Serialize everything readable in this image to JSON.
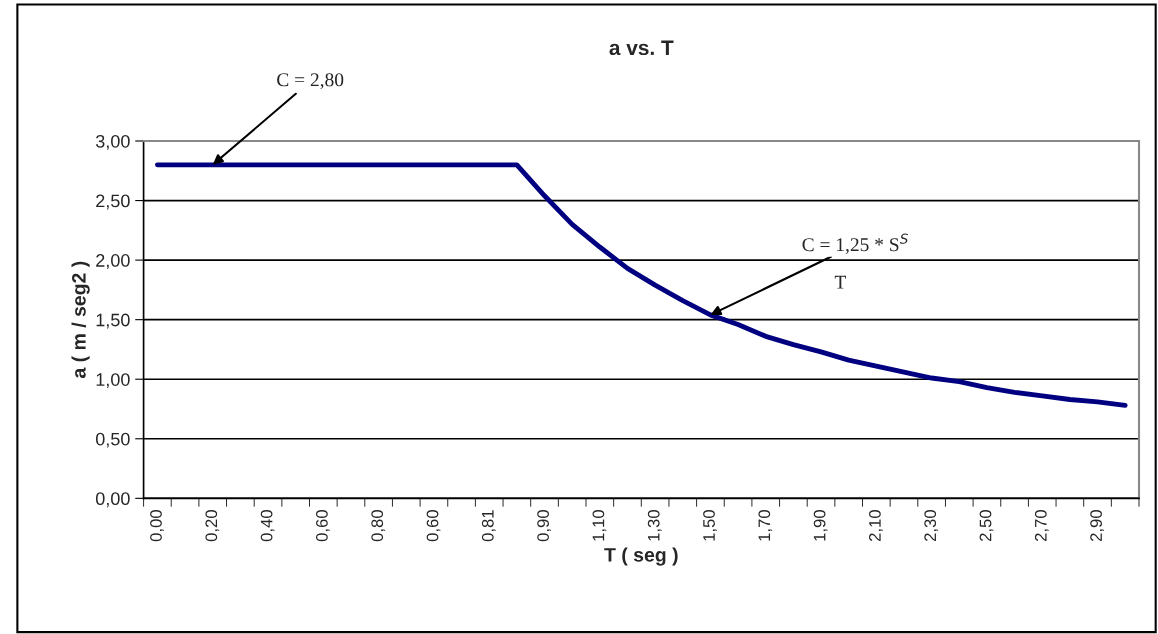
{
  "chart_data": {
    "type": "line",
    "title": "a vs. T",
    "xlabel": "T ( seg )",
    "ylabel": "a ( m / seg2 )",
    "categories": [
      "0,00",
      null,
      "0,20",
      null,
      "0,40",
      null,
      "0,60",
      null,
      "0,80",
      null,
      "0,60",
      null,
      "0,81",
      null,
      "0,90",
      null,
      "1,10",
      null,
      "1,30",
      null,
      "1,50",
      null,
      "1,70",
      null,
      "1,90",
      null,
      "2,10",
      null,
      "2,30",
      null,
      "2,50",
      null,
      "2,70",
      null,
      "2,90",
      null
    ],
    "series": [
      {
        "color": "#000080",
        "values": [
          2.8,
          2.8,
          2.8,
          2.8,
          2.8,
          2.8,
          2.8,
          2.8,
          2.8,
          2.8,
          2.8,
          2.8,
          2.8,
          2.8,
          2.54,
          2.3,
          2.11,
          1.93,
          1.79,
          1.66,
          1.54,
          1.46,
          1.36,
          1.29,
          1.23,
          1.16,
          1.11,
          1.06,
          1.01,
          0.98,
          0.93,
          0.89,
          0.86,
          0.83,
          0.81,
          0.78
        ]
      }
    ],
    "ylim": [
      0,
      3
    ],
    "yticks": [
      {
        "value": 0,
        "label": "0,00"
      },
      {
        "value": 0.5,
        "label": "0,50"
      },
      {
        "value": 1,
        "label": "1,00"
      },
      {
        "value": 1.5,
        "label": "1,50"
      },
      {
        "value": 2,
        "label": "2,00"
      },
      {
        "value": 2.5,
        "label": "2,50"
      },
      {
        "value": 3,
        "label": "3,00"
      }
    ],
    "grid": "y",
    "marker": "none",
    "line_style": "solid",
    "annotations": [
      {
        "text": "C = 2,80",
        "x": "0,20",
        "y": 2.8
      },
      {
        "text": "C = 1,25 * S$^{S}$",
        "x": "1,50",
        "y": 1.54
      },
      "T"
    ]
  }
}
